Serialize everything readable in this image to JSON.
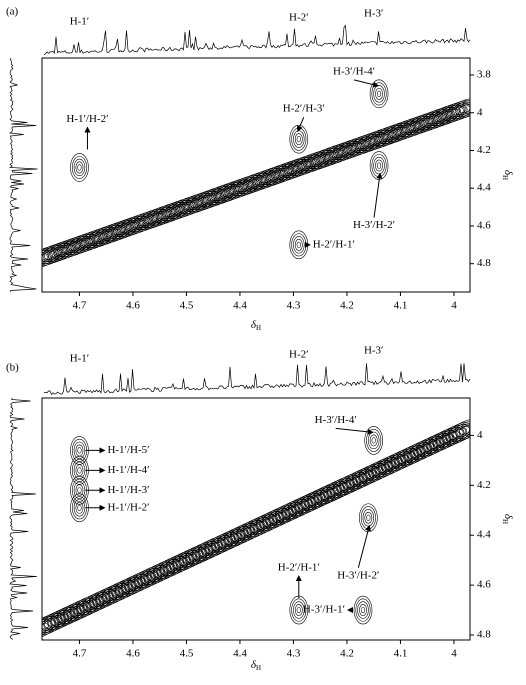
{
  "chart_data": [
    {
      "type": "contour",
      "title": "(a)",
      "xlabel": {
        "symbol": "δ",
        "subscript": "H"
      },
      "ylabel": {
        "symbol": "δ",
        "subscript": "H"
      },
      "xlim": [
        4.77,
        3.97
      ],
      "xticks": [
        4.7,
        4.6,
        4.5,
        4.4,
        4.3,
        4.2,
        4.1,
        4.0
      ],
      "ylim": [
        3.71,
        4.95
      ],
      "yticks": [
        3.8,
        4.0,
        4.2,
        4.4,
        4.6,
        4.8
      ],
      "spectrum_labels": [
        {
          "label": "H-1′",
          "x": 4.7
        },
        {
          "label": "H-2′",
          "x": 4.29
        },
        {
          "label": "H-3′",
          "x": 4.15
        }
      ],
      "peaks": [
        {
          "label": "H-1′/H-2′",
          "x": 4.7,
          "y": 4.29
        },
        {
          "label": "H-2′/H-3′",
          "x": 4.29,
          "y": 4.14
        },
        {
          "label": "H-3′/H-4′",
          "x": 4.14,
          "y": 3.9
        },
        {
          "label": "H-3′/H-2′",
          "x": 4.14,
          "y": 4.28
        },
        {
          "label": "H-2′/H-1′",
          "x": 4.29,
          "y": 4.7
        }
      ]
    },
    {
      "type": "contour",
      "title": "(b)",
      "xlabel": {
        "symbol": "δ",
        "subscript": "H"
      },
      "ylabel": {
        "symbol": "δ",
        "subscript": "H"
      },
      "xlim": [
        4.77,
        3.97
      ],
      "xticks": [
        4.7,
        4.6,
        4.5,
        4.4,
        4.3,
        4.2,
        4.1,
        4.0
      ],
      "ylim": [
        3.85,
        4.82
      ],
      "yticks": [
        4.0,
        4.2,
        4.4,
        4.6,
        4.8
      ],
      "spectrum_labels": [
        {
          "label": "H-1′",
          "x": 4.7
        },
        {
          "label": "H-2′",
          "x": 4.29
        },
        {
          "label": "H-3′",
          "x": 4.15
        }
      ],
      "peaks": [
        {
          "label": "H-1′/H-5′",
          "x": 4.7,
          "y": 4.06
        },
        {
          "label": "H-1′/H-4′",
          "x": 4.7,
          "y": 4.14
        },
        {
          "label": "H-1′/H-3′",
          "x": 4.7,
          "y": 4.22
        },
        {
          "label": "H-1′/H-2′",
          "x": 4.7,
          "y": 4.29
        },
        {
          "label": "H-3′/H-4′",
          "x": 4.15,
          "y": 4.02
        },
        {
          "label": "H-3′/H-2′",
          "x": 4.16,
          "y": 4.33
        },
        {
          "label": "H-2′/H-1′",
          "x": 4.29,
          "y": 4.7
        },
        {
          "label": "H-3′/H-1′",
          "x": 4.17,
          "y": 4.7
        }
      ]
    }
  ]
}
